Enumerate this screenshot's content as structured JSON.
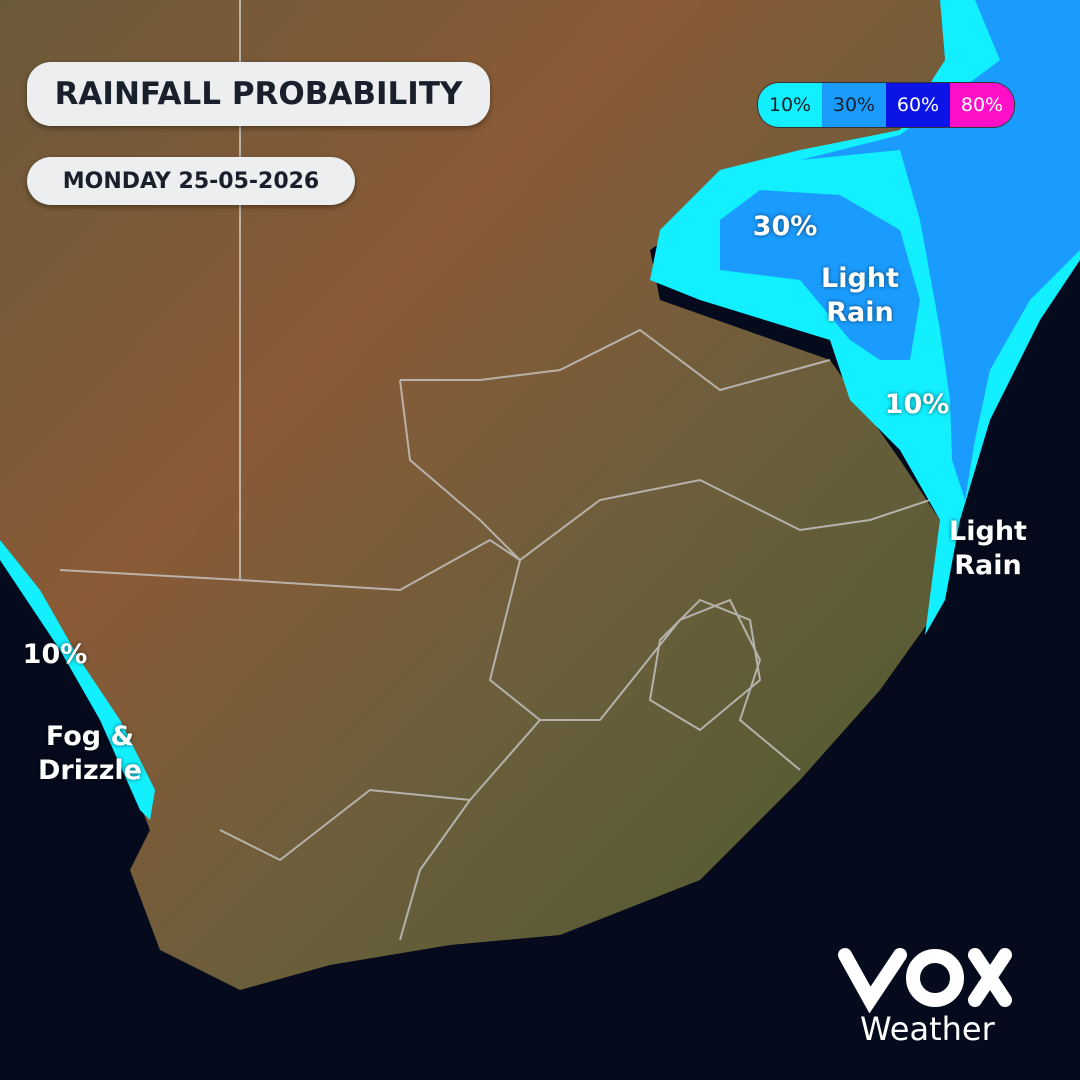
{
  "header": {
    "title": "RAINFALL PROBABILITY",
    "date": "MONDAY 25-05-2026"
  },
  "legend": [
    {
      "label": "10%",
      "color": "#12f0ff"
    },
    {
      "label": "30%",
      "color": "#1a9cff"
    },
    {
      "label": "60%",
      "color": "#0a14e6"
    },
    {
      "label": "80%",
      "color": "#ff10c8"
    }
  ],
  "map_labels": [
    {
      "text": "30%"
    },
    {
      "text": "Light Rain"
    },
    {
      "text": "10%"
    },
    {
      "text": "Light Rain"
    },
    {
      "text": "10%"
    },
    {
      "text": "Fog & Drizzle"
    }
  ],
  "brand": {
    "name": "Weather"
  }
}
